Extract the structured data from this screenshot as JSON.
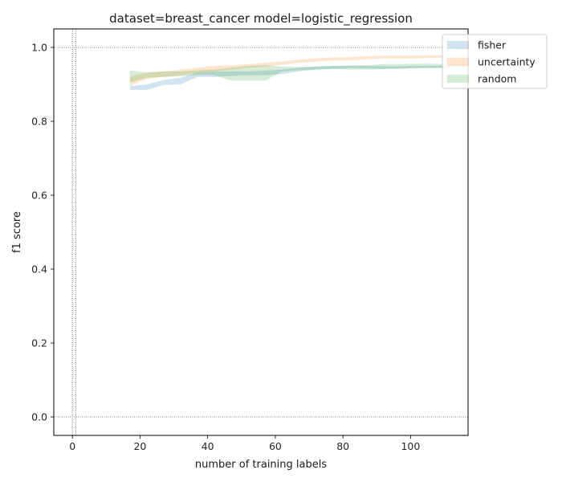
{
  "chart_data": {
    "type": "area",
    "title": "dataset=breast_cancer model=logistic_regression",
    "xlabel": "number of training labels",
    "ylabel": "f1 score",
    "xlim": [
      -5.5,
      117
    ],
    "ylim": [
      -0.05,
      1.05
    ],
    "xticks": [
      0,
      20,
      40,
      60,
      80,
      100
    ],
    "yticks": [
      0.0,
      0.2,
      0.4,
      0.6,
      0.8,
      1.0
    ],
    "xtick_labels": [
      "0",
      "20",
      "40",
      "60",
      "80",
      "100"
    ],
    "ytick_labels": [
      "0.0",
      "0.2",
      "0.4",
      "0.6",
      "0.8",
      "1.0"
    ],
    "reference_lines": {
      "vertical": [
        0,
        1
      ],
      "horizontal": [
        0.0,
        1.0
      ]
    },
    "legend_position": "top-right",
    "series": [
      {
        "name": "fisher",
        "color": "#1f77b4",
        "x": [
          17,
          22,
          27,
          32,
          37,
          42,
          47,
          52,
          57,
          62,
          67,
          72,
          77,
          82,
          87,
          92,
          97,
          102,
          107,
          112,
          117
        ],
        "lower": [
          0.885,
          0.885,
          0.898,
          0.9,
          0.92,
          0.92,
          0.923,
          0.925,
          0.925,
          0.928,
          0.935,
          0.94,
          0.942,
          0.944,
          0.943,
          0.942,
          0.943,
          0.944,
          0.944,
          0.944,
          0.945
        ],
        "upper": [
          0.895,
          0.9,
          0.912,
          0.918,
          0.932,
          0.935,
          0.935,
          0.935,
          0.937,
          0.94,
          0.945,
          0.948,
          0.95,
          0.951,
          0.95,
          0.949,
          0.949,
          0.95,
          0.95,
          0.951,
          0.951
        ]
      },
      {
        "name": "uncertainty",
        "color": "#ff7f0e",
        "x": [
          17,
          22,
          27,
          32,
          37,
          42,
          47,
          52,
          57,
          62,
          67,
          72,
          77,
          82,
          87,
          92,
          97,
          102,
          107,
          112,
          117
        ],
        "lower": [
          0.895,
          0.915,
          0.92,
          0.925,
          0.93,
          0.935,
          0.94,
          0.945,
          0.948,
          0.953,
          0.958,
          0.962,
          0.965,
          0.965,
          0.968,
          0.97,
          0.97,
          0.97,
          0.972,
          0.972,
          0.972
        ],
        "upper": [
          0.92,
          0.932,
          0.935,
          0.94,
          0.945,
          0.95,
          0.952,
          0.955,
          0.958,
          0.962,
          0.967,
          0.97,
          0.973,
          0.973,
          0.976,
          0.978,
          0.978,
          0.978,
          0.979,
          0.979,
          0.979
        ]
      },
      {
        "name": "random",
        "color": "#2ca02c",
        "x": [
          17,
          22,
          27,
          32,
          37,
          42,
          47,
          52,
          57,
          62,
          67,
          72,
          77,
          82,
          87,
          92,
          97,
          102,
          107,
          112,
          117
        ],
        "lower": [
          0.905,
          0.918,
          0.92,
          0.922,
          0.925,
          0.925,
          0.91,
          0.91,
          0.91,
          0.935,
          0.938,
          0.94,
          0.942,
          0.94,
          0.94,
          0.942,
          0.942,
          0.944,
          0.945,
          0.945,
          0.945
        ],
        "upper": [
          0.938,
          0.932,
          0.935,
          0.935,
          0.938,
          0.94,
          0.945,
          0.95,
          0.952,
          0.948,
          0.947,
          0.948,
          0.95,
          0.95,
          0.952,
          0.955,
          0.955,
          0.956,
          0.956,
          0.955,
          0.955
        ]
      }
    ]
  }
}
